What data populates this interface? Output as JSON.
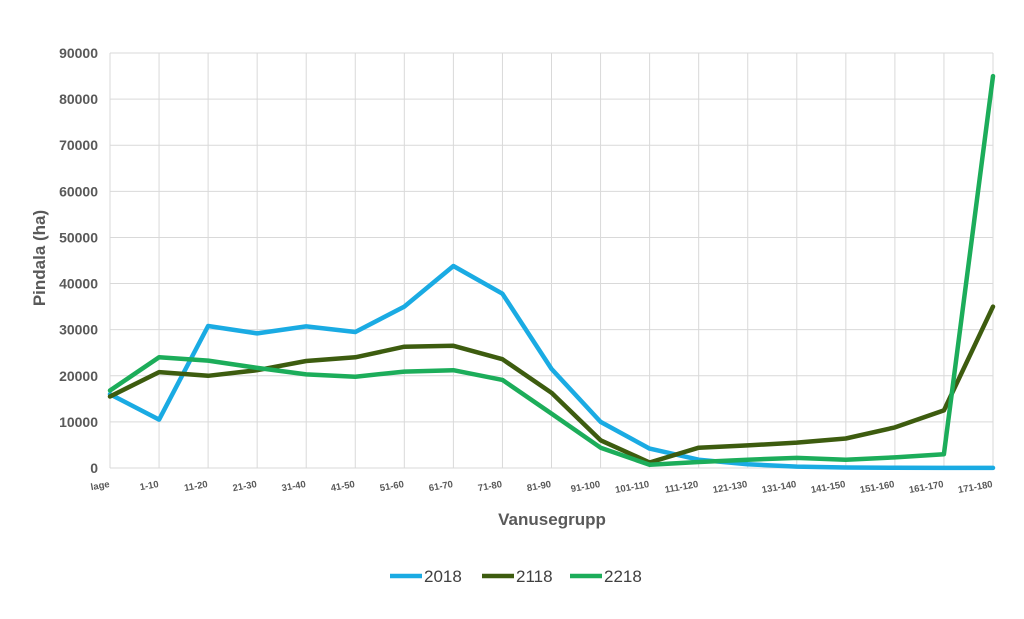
{
  "chart_data": {
    "type": "line",
    "title": "",
    "xlabel": "Vanusegrupp",
    "ylabel": "Pindala (ha)",
    "ylim": [
      0,
      90000
    ],
    "yticks": [
      0,
      10000,
      20000,
      30000,
      40000,
      50000,
      60000,
      70000,
      80000,
      90000
    ],
    "grid": true,
    "legend_position": "bottom",
    "categories": [
      "lage",
      "1-10",
      "11-20",
      "21-30",
      "31-40",
      "41-50",
      "51-60",
      "61-70",
      "71-80",
      "81-90",
      "91-100",
      "101-110",
      "111-120",
      "121-130",
      "131-140",
      "141-150",
      "151-160",
      "161-170",
      "171-180"
    ],
    "series": [
      {
        "name": "2018",
        "color": "#1aabe3",
        "values": [
          16000,
          10500,
          30800,
          29200,
          30700,
          29500,
          35000,
          43800,
          37800,
          21500,
          10000,
          4200,
          1800,
          800,
          300,
          100,
          50,
          30,
          20
        ]
      },
      {
        "name": "2118",
        "color": "#3d5c0f",
        "values": [
          15500,
          20800,
          20000,
          21200,
          23200,
          24000,
          26300,
          26500,
          23600,
          16300,
          6000,
          1200,
          4400,
          4900,
          5500,
          6400,
          8800,
          12500,
          35000
        ]
      },
      {
        "name": "2218",
        "color": "#1cad5a",
        "values": [
          16800,
          24000,
          23300,
          21700,
          20300,
          19800,
          20900,
          21200,
          19100,
          11800,
          4400,
          700,
          1300,
          1800,
          2200,
          1800,
          2300,
          3000,
          85000
        ]
      }
    ]
  }
}
